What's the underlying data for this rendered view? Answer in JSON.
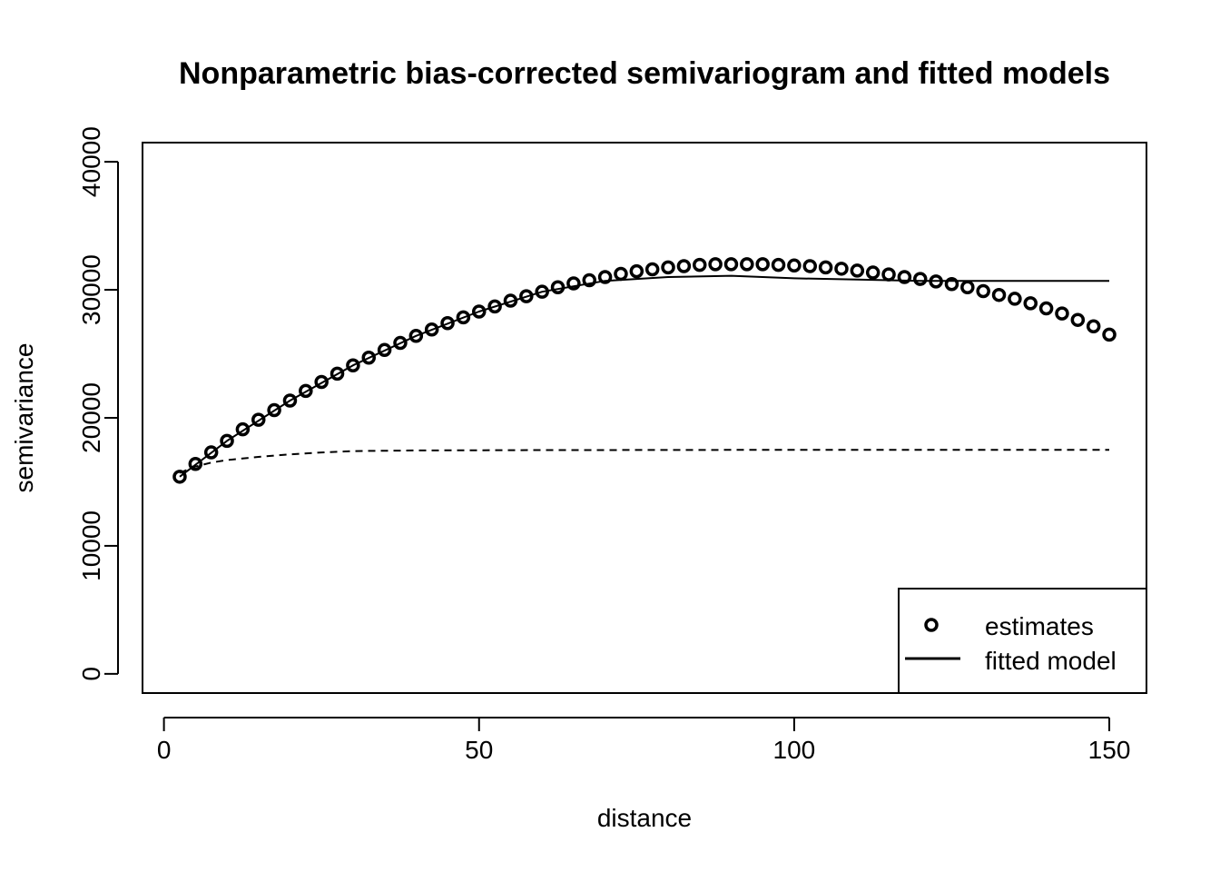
{
  "chart_data": {
    "type": "scatter",
    "title": "Nonparametric bias-corrected semivariogram and fitted models",
    "xlabel": "distance",
    "ylabel": "semivariance",
    "xlim": [
      -3.4,
      155.9
    ],
    "ylim": [
      -1500,
      41500
    ],
    "xticks": [
      0,
      50,
      100,
      150
    ],
    "yticks": [
      0,
      10000,
      20000,
      30000,
      40000
    ],
    "xtick_labels": [
      "0",
      "50",
      "100",
      "150"
    ],
    "ytick_labels": [
      "0",
      "10000",
      "20000",
      "30000",
      "40000"
    ],
    "grid": false,
    "legend": {
      "position": "bottom-right",
      "entries": [
        {
          "label": "estimates",
          "symbol": "circle"
        },
        {
          "label": "fitted model",
          "symbol": "line"
        }
      ]
    },
    "series": [
      {
        "name": "estimates",
        "style": "points",
        "x": [
          2.5,
          5,
          7.5,
          10,
          12.5,
          15,
          17.5,
          20,
          22.5,
          25,
          27.5,
          30,
          32.5,
          35,
          37.5,
          40,
          42.5,
          45,
          47.5,
          50,
          52.5,
          55,
          57.5,
          60,
          62.5,
          65,
          67.5,
          70,
          72.5,
          75,
          77.5,
          80,
          82.5,
          85,
          87.5,
          90,
          92.5,
          95,
          97.5,
          100,
          102.5,
          105,
          107.5,
          110,
          112.5,
          115,
          117.5,
          120,
          122.5,
          125,
          127.5,
          130,
          132.5,
          135,
          137.5,
          140,
          142.5,
          145,
          147.5,
          150
        ],
        "y": [
          15400,
          16400,
          17300,
          18200,
          19100,
          19850,
          20600,
          21350,
          22100,
          22800,
          23450,
          24100,
          24700,
          25300,
          25850,
          26400,
          26900,
          27400,
          27850,
          28300,
          28700,
          29150,
          29500,
          29850,
          30200,
          30500,
          30750,
          31000,
          31250,
          31450,
          31600,
          31750,
          31850,
          31950,
          32000,
          32000,
          32000,
          32000,
          31950,
          31900,
          31850,
          31750,
          31650,
          31500,
          31350,
          31200,
          31000,
          30850,
          30650,
          30450,
          30200,
          29900,
          29600,
          29300,
          28950,
          28550,
          28150,
          27650,
          27150,
          26500
        ]
      },
      {
        "name": "fitted model",
        "style": "solid",
        "x": [
          2.5,
          10,
          20,
          30,
          40,
          50,
          60,
          70,
          80,
          90,
          100,
          110,
          120,
          130,
          140,
          150
        ],
        "y": [
          15400,
          18200,
          21350,
          24100,
          26400,
          28300,
          29850,
          30700,
          31000,
          31100,
          30900,
          30800,
          30700,
          30700,
          30700,
          30700
        ]
      },
      {
        "style": "dashed",
        "x": [
          2.5,
          5,
          7.5,
          10,
          15,
          20,
          25,
          30,
          40,
          60,
          80,
          100,
          120,
          150
        ],
        "y": [
          15700,
          16200,
          16500,
          16700,
          16950,
          17150,
          17300,
          17400,
          17450,
          17480,
          17490,
          17500,
          17500,
          17500
        ]
      }
    ]
  }
}
